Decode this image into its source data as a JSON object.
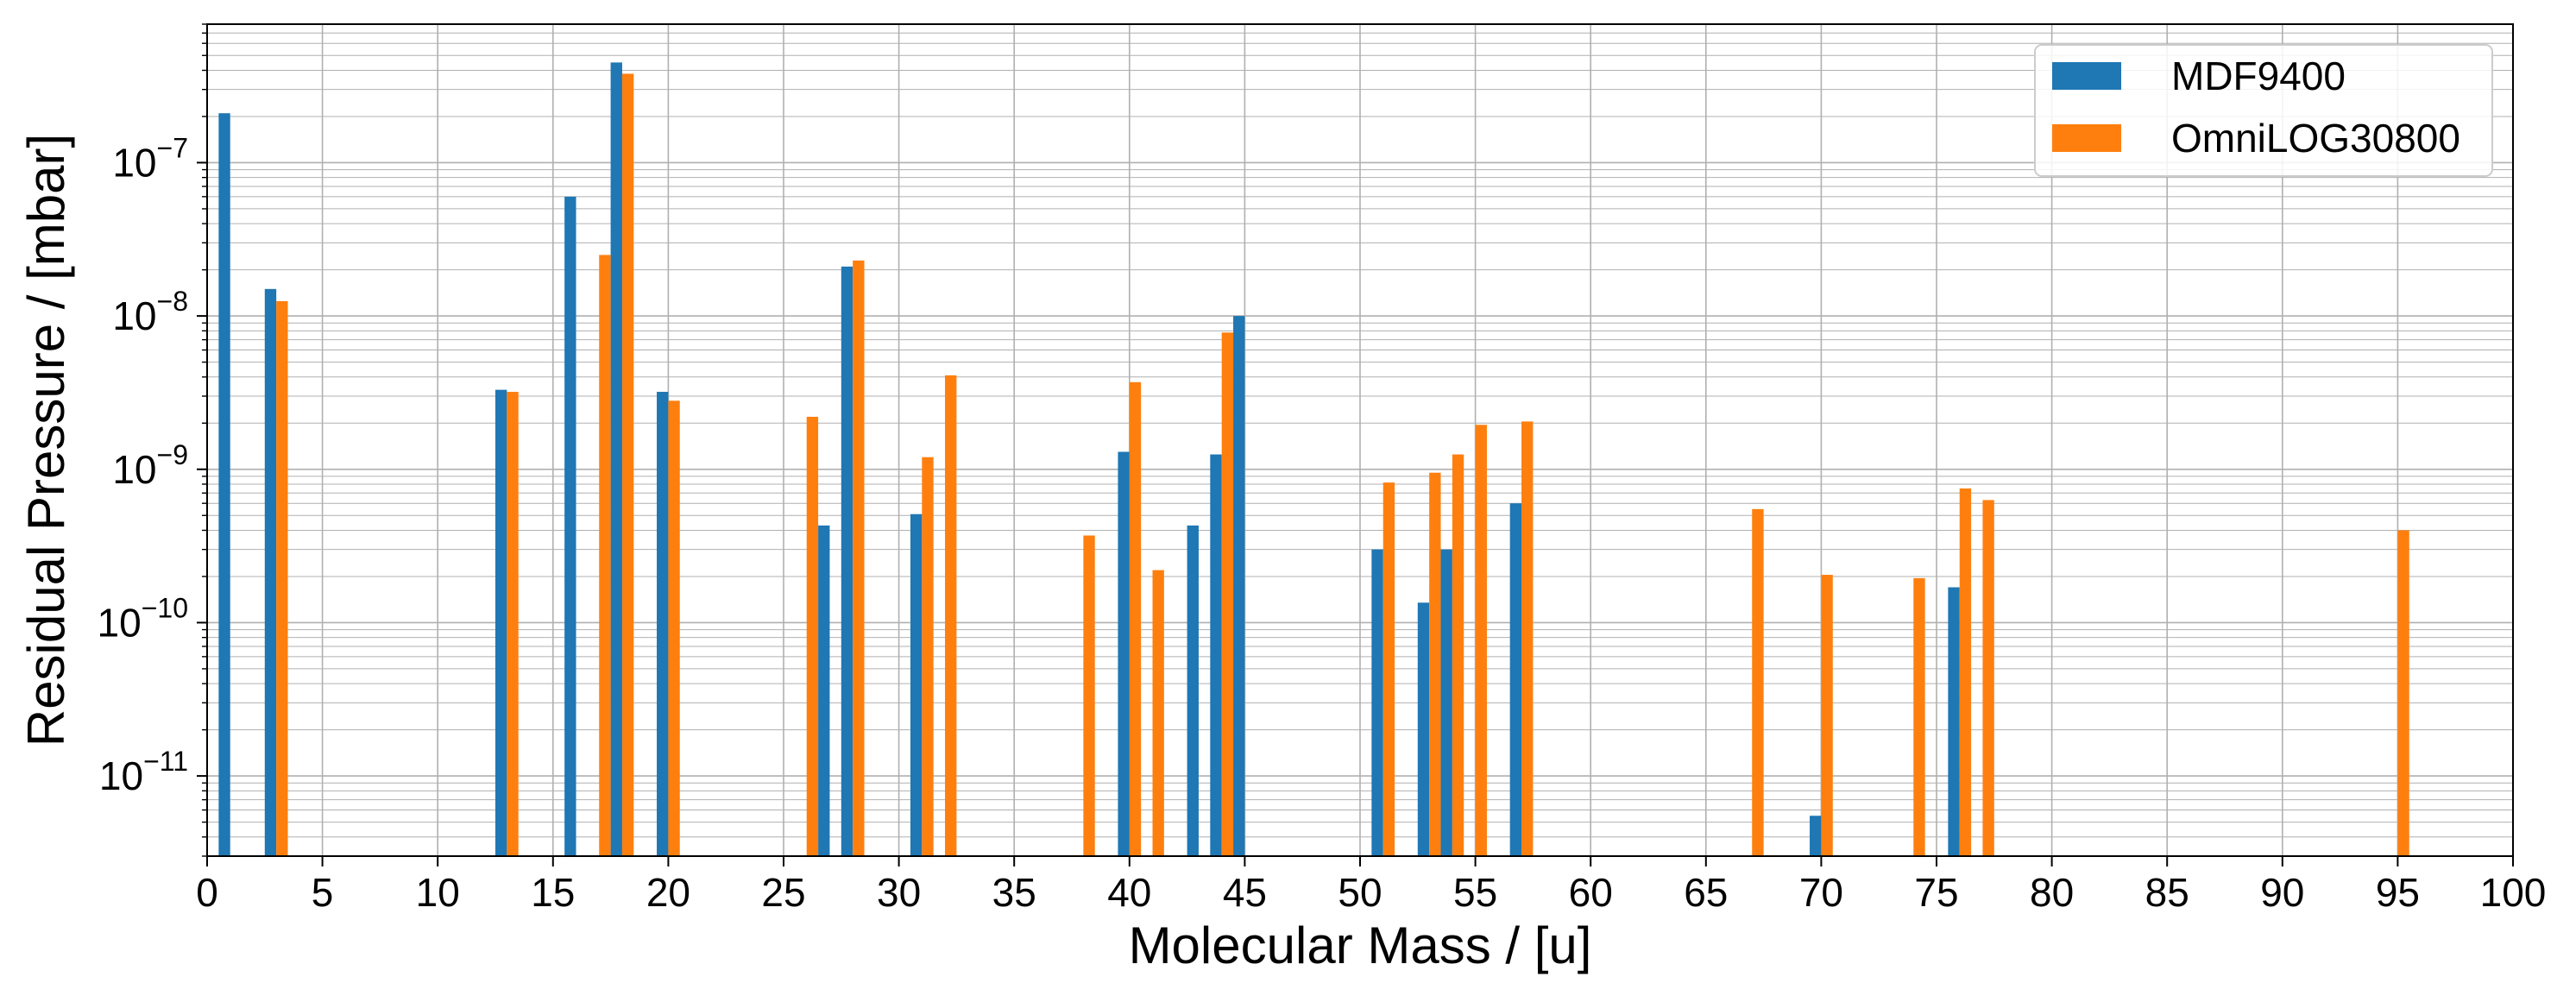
{
  "chart_data": {
    "type": "bar",
    "xlabel": "Molecular Mass / [u]",
    "ylabel": "Residual Pressure / [mbar]",
    "yscale": "log",
    "xlim": [
      0,
      100
    ],
    "ylim": [
      3e-12,
      8e-07
    ],
    "grid": true,
    "legend_position": "top-right",
    "x_ticks": [
      "0",
      "5",
      "10",
      "15",
      "20",
      "25",
      "30",
      "35",
      "40",
      "45",
      "50",
      "55",
      "60",
      "65",
      "70",
      "75",
      "80",
      "85",
      "90",
      "95",
      "100"
    ],
    "y_ticks": [
      {
        "base": "10",
        "exp": "−11",
        "value": 1e-11
      },
      {
        "base": "10",
        "exp": "−10",
        "value": 1e-10
      },
      {
        "base": "10",
        "exp": "−9",
        "value": 1e-09
      },
      {
        "base": "10",
        "exp": "−8",
        "value": 1e-08
      },
      {
        "base": "10",
        "exp": "−7",
        "value": 1e-07
      }
    ],
    "series": [
      {
        "name": "MDF9400",
        "color": "#1f77b4",
        "points": [
          {
            "x": 1,
            "y": 2.1e-07
          },
          {
            "x": 3,
            "y": 1.5e-08
          },
          {
            "x": 13,
            "y": 3.3e-09
          },
          {
            "x": 16,
            "y": 6e-08
          },
          {
            "x": 18,
            "y": 4.5e-07
          },
          {
            "x": 20,
            "y": 3.2e-09
          },
          {
            "x": 27,
            "y": 4.3e-10
          },
          {
            "x": 28,
            "y": 2.1e-08
          },
          {
            "x": 31,
            "y": 5.1e-10
          },
          {
            "x": 40,
            "y": 1.3e-09
          },
          {
            "x": 43,
            "y": 4.3e-10
          },
          {
            "x": 44,
            "y": 1.25e-09
          },
          {
            "x": 45,
            "y": 1e-08
          },
          {
            "x": 51,
            "y": 3e-10
          },
          {
            "x": 53,
            "y": 1.35e-10
          },
          {
            "x": 54,
            "y": 3e-10
          },
          {
            "x": 57,
            "y": 6e-10
          },
          {
            "x": 70,
            "y": 5.5e-12
          },
          {
            "x": 76,
            "y": 1.7e-10
          }
        ]
      },
      {
        "name": "OmniLOG30800",
        "color": "#ff7f0e",
        "points": [
          {
            "x": 3,
            "y": 1.25e-08
          },
          {
            "x": 13,
            "y": 3.2e-09
          },
          {
            "x": 17,
            "y": 2.5e-08
          },
          {
            "x": 18,
            "y": 3.8e-07
          },
          {
            "x": 20,
            "y": 2.8e-09
          },
          {
            "x": 26,
            "y": 2.2e-09
          },
          {
            "x": 28,
            "y": 2.3e-08
          },
          {
            "x": 31,
            "y": 1.2e-09
          },
          {
            "x": 32,
            "y": 4.1e-09
          },
          {
            "x": 38,
            "y": 3.7e-10
          },
          {
            "x": 40,
            "y": 3.7e-09
          },
          {
            "x": 41,
            "y": 2.2e-10
          },
          {
            "x": 44,
            "y": 7.8e-09
          },
          {
            "x": 51,
            "y": 8.2e-10
          },
          {
            "x": 53,
            "y": 9.5e-10
          },
          {
            "x": 54,
            "y": 1.25e-09
          },
          {
            "x": 55,
            "y": 1.95e-09
          },
          {
            "x": 57,
            "y": 2.05e-09
          },
          {
            "x": 67,
            "y": 5.5e-10
          },
          {
            "x": 70,
            "y": 2.05e-10
          },
          {
            "x": 74,
            "y": 1.95e-10
          },
          {
            "x": 76,
            "y": 7.5e-10
          },
          {
            "x": 77,
            "y": 6.3e-10
          },
          {
            "x": 95,
            "y": 4e-10
          }
        ]
      }
    ]
  }
}
